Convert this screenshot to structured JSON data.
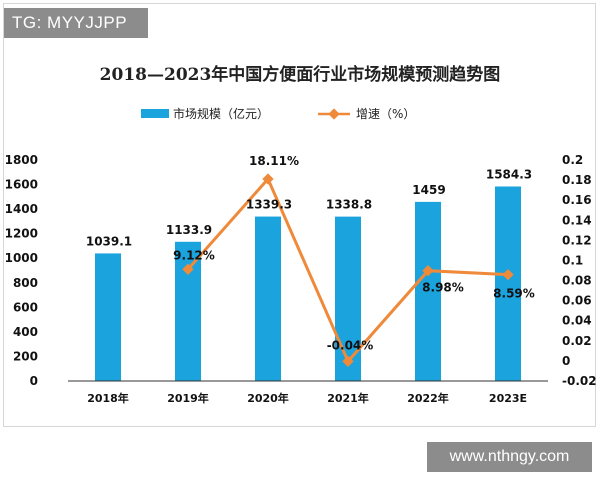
{
  "watermarks": {
    "top_left": "TG: MYYJJPP",
    "bottom_right": "www.nthngy.com"
  },
  "colors": {
    "bar": "#1ba3dd",
    "line": "#ee8a3a",
    "axis": "#333333"
  },
  "chart_data": {
    "type": "bar+line",
    "title": "2018—2023年中国方便面行业市场规模预测趋势图",
    "categories": [
      "2018年",
      "2019年",
      "2020年",
      "2021年",
      "2022年",
      "2023E"
    ],
    "series": [
      {
        "name": "市场规模（亿元）",
        "type": "bar",
        "axis": "left",
        "values": [
          1039.1,
          1133.9,
          1339.3,
          1338.8,
          1459,
          1584.3
        ],
        "labels": [
          "1039.1",
          "1133.9",
          "1339.3",
          "1338.8",
          "1459",
          "1584.3"
        ]
      },
      {
        "name": "增速（%）",
        "type": "line",
        "axis": "right",
        "values": [
          null,
          0.0912,
          0.1811,
          -0.0004,
          0.0898,
          0.0859
        ],
        "labels": [
          "",
          "9.12%",
          "18.11%",
          "-0.04%",
          "8.98%",
          "8.59%"
        ]
      }
    ],
    "left_axis": {
      "ylim": [
        0,
        1800
      ],
      "ticks": [
        "0",
        "200",
        "400",
        "600",
        "800",
        "1000",
        "1200",
        "1400",
        "1600",
        "1800"
      ]
    },
    "right_axis": {
      "ylim": [
        -0.02,
        0.2
      ],
      "ticks": [
        "-0.02",
        "0",
        "0.02",
        "0.04",
        "0.06",
        "0.08",
        "0.1",
        "0.12",
        "0.14",
        "0.16",
        "0.18",
        "0.2"
      ]
    },
    "legend": "top-center",
    "grid": false
  }
}
